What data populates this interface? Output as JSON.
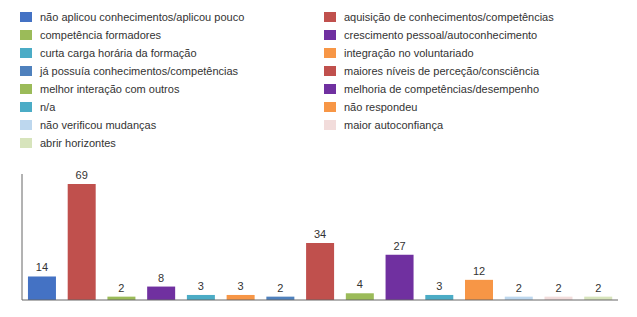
{
  "chart_data": {
    "type": "bar",
    "categories": [
      "não aplicou conhecimentos/aplicou pouco",
      "aquisição de conhecimentos/competências",
      "competência formadores",
      "crescimento pessoal/autoconhecimento",
      "curta carga horária da formação",
      "integração no voluntariado",
      "já possuía conhecimentos/competências",
      "maiores níveis de perceção/consciência",
      "melhor interação com outros",
      "melhoria de competências/desempenho",
      "n/a",
      "não respondeu",
      "não verificou mudanças",
      "maior autoconfiança",
      "abrir horizontes"
    ],
    "values": [
      14,
      69,
      2,
      8,
      3,
      3,
      2,
      34,
      4,
      27,
      3,
      12,
      2,
      2,
      2
    ],
    "colors": [
      "#4472C4",
      "#C0504D",
      "#9BBB59",
      "#7030A0",
      "#4BACC6",
      "#F79646",
      "#4F81BD",
      "#C0504D",
      "#9BBB59",
      "#7030A0",
      "#4BACC6",
      "#F79646",
      "#BDD7EE",
      "#F2DCDB",
      "#D7E4BC"
    ],
    "ylim": [
      0,
      75
    ],
    "data_labels": true,
    "tick_labels": false,
    "legend": "top",
    "grid": false
  }
}
